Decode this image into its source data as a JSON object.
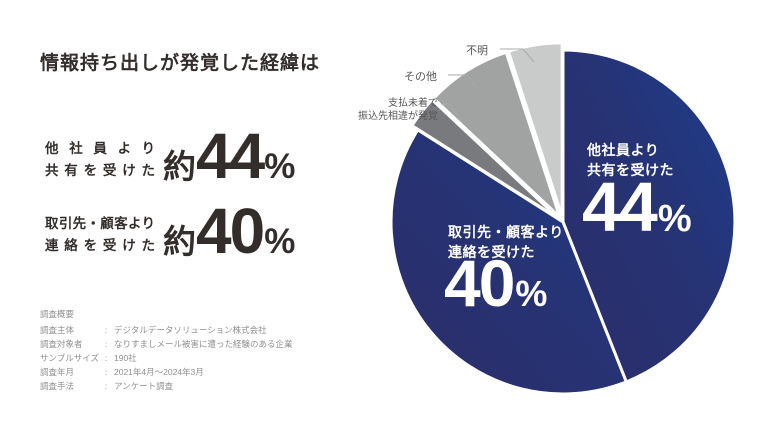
{
  "title": "情報持ち出しが発覚した経緯は",
  "stats": [
    {
      "label_line1": "他社員より",
      "label_line2": "共有を受けた",
      "prefix": "約",
      "value": "44",
      "unit": "%"
    },
    {
      "label_line1": "取引先・顧客より",
      "label_line2": "連絡を受けた",
      "prefix": "約",
      "value": "40",
      "unit": "%"
    }
  ],
  "survey": {
    "heading": "調査概要",
    "rows": [
      {
        "label": "調査主体",
        "sep": ":",
        "value": "デジタルデータソリューション株式会社"
      },
      {
        "label": "調査対象者",
        "sep": ":",
        "value": "なりすましメール被害に遭った経験のある企業"
      },
      {
        "label": "サンプルサイズ",
        "sep": ":",
        "value": "190社"
      },
      {
        "label": "調査年月",
        "sep": ":",
        "value": "2021年4月〜2024年3月"
      },
      {
        "label": "調査手法",
        "sep": ":",
        "value": "アンケート調査"
      }
    ]
  },
  "chart_data": {
    "type": "pie",
    "title": "情報持ち出しが発覚した経緯は",
    "start_angle_deg": 0,
    "clockwise": true,
    "colors": {
      "blue_gradient_start": "#2d2c6a",
      "blue_gradient_end": "#1e3d90",
      "gray_dark": "#797a7d",
      "gray_medium": "#a1a2a2",
      "gray_light": "#c9caca"
    },
    "slices": [
      {
        "name": "他社員より共有を受けた",
        "label_lines": [
          "他社員より",
          "共有を受けた"
        ],
        "value": 44,
        "display": "44",
        "unit": "%",
        "color": "blue-gradient",
        "exploded": false
      },
      {
        "name": "取引先・顧客より連絡を受けた",
        "label_lines": [
          "取引先・顧客より",
          "連絡を受けた"
        ],
        "value": 40,
        "display": "40",
        "unit": "%",
        "color": "blue-gradient",
        "exploded": false
      },
      {
        "name": "支払未着で振込先相違が発覚",
        "label_lines": [
          "支払未着で",
          "振込先相違が発覚"
        ],
        "value": 3,
        "color": "#797a7d",
        "exploded": true
      },
      {
        "name": "その他",
        "value": 8,
        "color": "#a1a2a2",
        "exploded": true
      },
      {
        "name": "不明",
        "value": 5,
        "color": "#c9caca",
        "exploded": true
      }
    ]
  }
}
